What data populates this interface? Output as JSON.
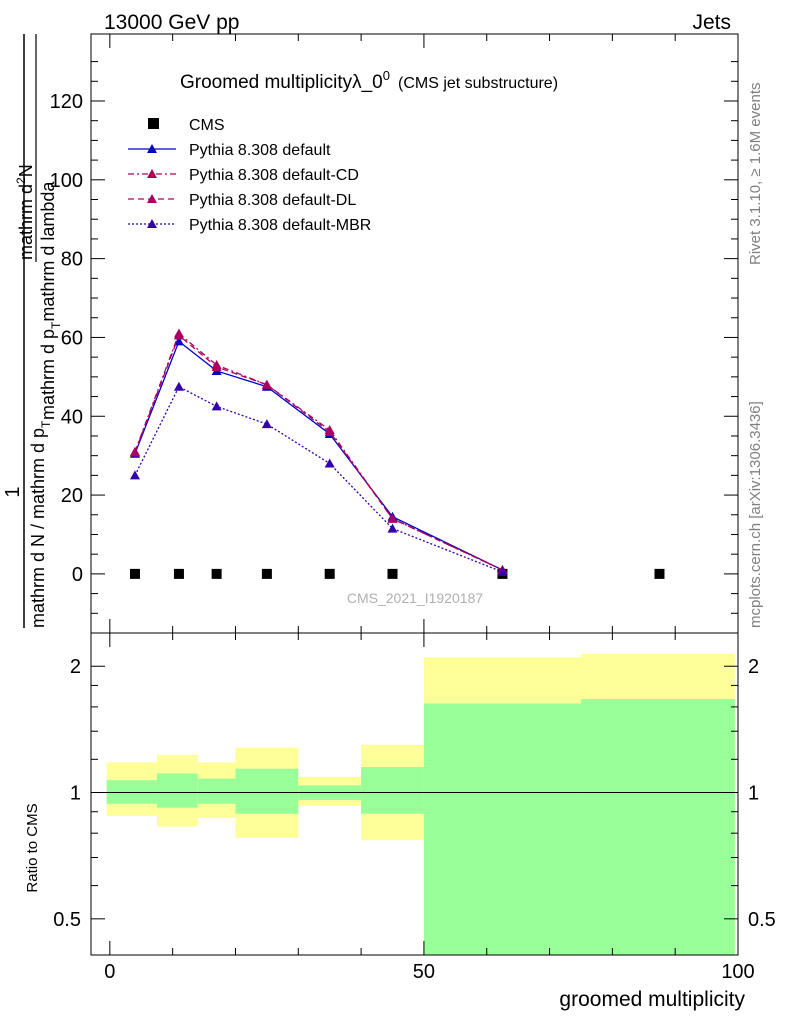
{
  "header": {
    "left": "13000 GeV pp",
    "right": "Jets"
  },
  "title": {
    "main": "Groomed multiplicityλ_0",
    "main_sup": "0",
    "paren": "(CMS jet substructure)"
  },
  "side_labels": {
    "rivet": "Rivet 3.1.10, ≥ 1.6M events",
    "mcplots": "mcplots.cern.ch [arXiv:1306.3436]"
  },
  "watermark": "CMS_2021_I1920187",
  "ylabel_top": {
    "numerator_1": "1",
    "denominator_1": "mathrm d N / mathrm d p",
    "denominator_1_sub": "T",
    "numerator_2": "mathrm d",
    "numerator_2_sup": "2",
    "numerator_2_rest": "N",
    "denominator_2": "mathrm d p",
    "denominator_2_sub": "T",
    "denominator_2_rest": "mathrm d lambda"
  },
  "ylabel_bottom": "Ratio to CMS",
  "xlabel": "groomed multiplicity",
  "colors": {
    "default": "#0000cc",
    "cd": "#aa0055",
    "dl": "#aa0066",
    "mbr": "#3300aa",
    "band_outer": "#ffff99",
    "band_inner": "#99ff99"
  },
  "chart_data": [
    {
      "type": "line",
      "xlim": [
        -3,
        100
      ],
      "ylim": [
        -15,
        137
      ],
      "yticks": [
        0,
        20,
        40,
        60,
        80,
        100,
        120
      ],
      "legend_position": "top-left",
      "series": [
        {
          "name": "CMS",
          "marker": "square",
          "x": [
            4,
            11,
            17,
            25,
            35,
            45,
            62.5,
            87.5
          ],
          "y": [
            0,
            0,
            0,
            0,
            0,
            0,
            0,
            0
          ]
        },
        {
          "name": "Pythia 8.308 default",
          "marker": "triangle",
          "dash": "",
          "x": [
            4,
            11,
            17,
            25,
            35,
            45,
            62.5
          ],
          "y": [
            30.5,
            59,
            51.5,
            47.5,
            35.5,
            14.5,
            1
          ]
        },
        {
          "name": "Pythia 8.308 default-CD",
          "marker": "triangle",
          "dash": "6,3,2,3",
          "x": [
            4,
            11,
            17,
            25,
            35,
            45,
            62.5
          ],
          "y": [
            31,
            61,
            53,
            48,
            36.5,
            14,
            1
          ]
        },
        {
          "name": "Pythia 8.308 default-DL",
          "marker": "triangle",
          "dash": "6,4",
          "x": [
            4,
            11,
            17,
            25,
            35,
            45,
            62.5
          ],
          "y": [
            30.8,
            60.5,
            52.5,
            48,
            36,
            14,
            1
          ]
        },
        {
          "name": "Pythia 8.308 default-MBR",
          "marker": "triangle",
          "dash": "2,2",
          "x": [
            4,
            11,
            17,
            25,
            35,
            45,
            62.5
          ],
          "y": [
            25,
            47.5,
            42.5,
            38,
            28,
            11.5,
            0.5
          ]
        }
      ]
    },
    {
      "type": "area",
      "xlim": [
        -3,
        100
      ],
      "ylim": [
        0.41,
        2.4
      ],
      "yscale": "log",
      "yticks": [
        0.5,
        1,
        2
      ],
      "xticks": [
        0,
        50,
        100
      ],
      "reference_line": 1,
      "bands": [
        {
          "x_lo": -0.5,
          "x_hi": 7.5,
          "outer": [
            0.88,
            1.18
          ],
          "inner": [
            0.94,
            1.07
          ]
        },
        {
          "x_lo": 7.5,
          "x_hi": 14,
          "outer": [
            0.83,
            1.23
          ],
          "inner": [
            0.92,
            1.11
          ]
        },
        {
          "x_lo": 14,
          "x_hi": 20,
          "outer": [
            0.87,
            1.18
          ],
          "inner": [
            0.94,
            1.08
          ]
        },
        {
          "x_lo": 20,
          "x_hi": 30,
          "outer": [
            0.78,
            1.28
          ],
          "inner": [
            0.89,
            1.14
          ]
        },
        {
          "x_lo": 30,
          "x_hi": 40,
          "outer": [
            0.93,
            1.09
          ],
          "inner": [
            0.96,
            1.04
          ]
        },
        {
          "x_lo": 40,
          "x_hi": 50,
          "outer": [
            0.77,
            1.3
          ],
          "inner": [
            0.89,
            1.15
          ]
        },
        {
          "x_lo": 50,
          "x_hi": 75,
          "outer": [
            0.38,
            2.1
          ],
          "inner": [
            0.39,
            1.63
          ]
        },
        {
          "x_lo": 75,
          "x_hi": 99.5,
          "outer": [
            0.36,
            2.14
          ],
          "inner": [
            0.37,
            1.67
          ]
        }
      ]
    }
  ]
}
